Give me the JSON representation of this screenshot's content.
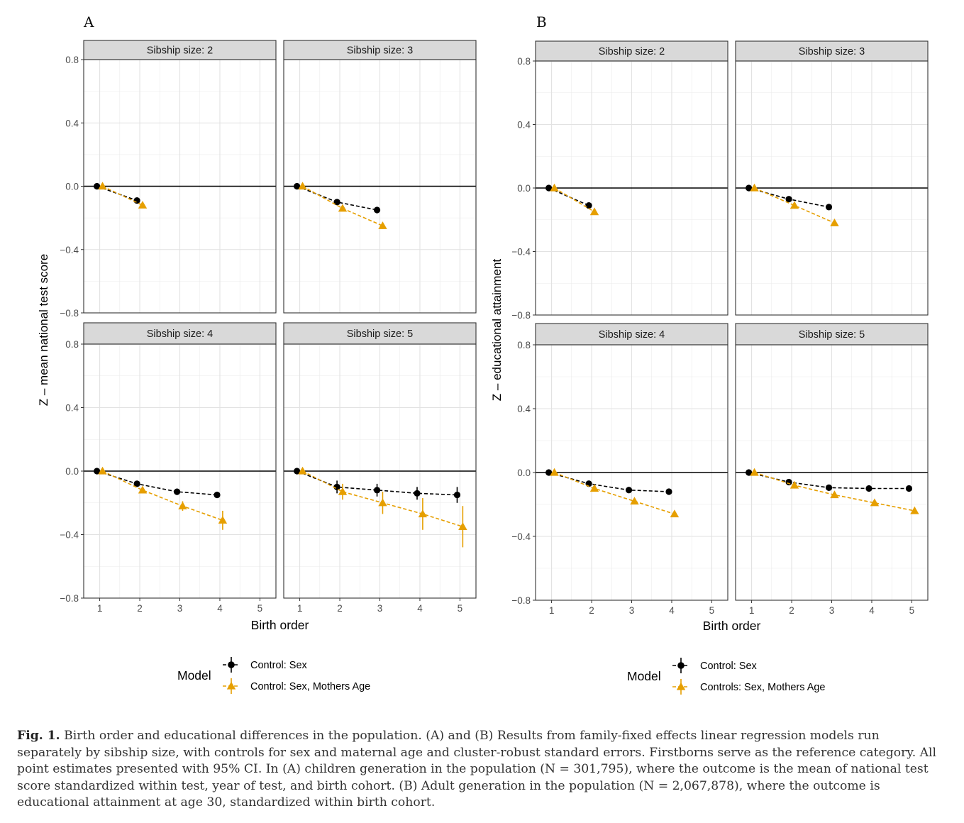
{
  "chart_data": [
    {
      "type": "line",
      "panel_label": "A",
      "ylabel": "Z – mean national test score",
      "xlabel": "Birth order",
      "ylim": [
        -0.8,
        0.8
      ],
      "yticks": [
        "0.8",
        "0.4",
        "0.0",
        "−0.4",
        "−0.8"
      ],
      "yticks_values": [
        0.8,
        0.4,
        0.0,
        -0.4,
        -0.8
      ],
      "xticks": [
        "1",
        "2",
        "3",
        "4",
        "5"
      ],
      "xlim": [
        0.6,
        5.4
      ],
      "grid": true,
      "legend": {
        "title": "Model",
        "position": "bottom",
        "entries": [
          "Control: Sex",
          "Control: Sex, Mothers Age"
        ]
      },
      "facets": [
        {
          "title": "Sibship size: 2",
          "series": [
            {
              "x": [
                1,
                2
              ],
              "y": [
                0.0,
                -0.09
              ],
              "ci_low": [
                0.0,
                -0.1
              ],
              "ci_high": [
                0.0,
                -0.08
              ]
            },
            {
              "x": [
                1,
                2
              ],
              "y": [
                0.0,
                -0.12
              ],
              "ci_low": [
                0.0,
                -0.13
              ],
              "ci_high": [
                0.0,
                -0.11
              ]
            }
          ]
        },
        {
          "title": "Sibship size: 3",
          "series": [
            {
              "x": [
                1,
                2,
                3
              ],
              "y": [
                0.0,
                -0.1,
                -0.15
              ],
              "ci_low": [
                0.0,
                -0.11,
                -0.17
              ],
              "ci_high": [
                0.0,
                -0.09,
                -0.13
              ]
            },
            {
              "x": [
                1,
                2,
                3
              ],
              "y": [
                0.0,
                -0.14,
                -0.25
              ],
              "ci_low": [
                0.0,
                -0.15,
                -0.27
              ],
              "ci_high": [
                0.0,
                -0.13,
                -0.23
              ]
            }
          ]
        },
        {
          "title": "Sibship size: 4",
          "series": [
            {
              "x": [
                1,
                2,
                3,
                4
              ],
              "y": [
                0.0,
                -0.08,
                -0.13,
                -0.15
              ],
              "ci_low": [
                0.0,
                -0.09,
                -0.15,
                -0.17
              ],
              "ci_high": [
                0.0,
                -0.07,
                -0.11,
                -0.13
              ]
            },
            {
              "x": [
                1,
                2,
                3,
                4
              ],
              "y": [
                0.0,
                -0.12,
                -0.22,
                -0.31
              ],
              "ci_low": [
                0.0,
                -0.14,
                -0.25,
                -0.37
              ],
              "ci_high": [
                0.0,
                -0.1,
                -0.19,
                -0.25
              ]
            }
          ]
        },
        {
          "title": "Sibship size: 5",
          "series": [
            {
              "x": [
                1,
                2,
                3,
                4,
                5
              ],
              "y": [
                0.0,
                -0.1,
                -0.12,
                -0.14,
                -0.15
              ],
              "ci_low": [
                0.0,
                -0.14,
                -0.16,
                -0.18,
                -0.2
              ],
              "ci_high": [
                0.0,
                -0.06,
                -0.08,
                -0.1,
                -0.1
              ]
            },
            {
              "x": [
                1,
                2,
                3,
                4,
                5
              ],
              "y": [
                0.0,
                -0.13,
                -0.2,
                -0.27,
                -0.35
              ],
              "ci_low": [
                0.0,
                -0.18,
                -0.27,
                -0.37,
                -0.48
              ],
              "ci_high": [
                0.0,
                -0.08,
                -0.13,
                -0.17,
                -0.22
              ]
            }
          ]
        }
      ]
    },
    {
      "type": "line",
      "panel_label": "B",
      "ylabel": "Z – educational attainment",
      "xlabel": "Birth order",
      "ylim": [
        -0.8,
        0.8
      ],
      "yticks": [
        "0.8",
        "0.4",
        "0.0",
        "−0.4",
        "−0.8"
      ],
      "yticks_values": [
        0.8,
        0.4,
        0.0,
        -0.4,
        -0.8
      ],
      "xticks": [
        "1",
        "2",
        "3",
        "4",
        "5"
      ],
      "xlim": [
        0.6,
        5.4
      ],
      "grid": true,
      "legend": {
        "title": "Model",
        "position": "bottom",
        "entries": [
          "Control: Sex",
          "Controls: Sex, Mothers Age"
        ]
      },
      "facets": [
        {
          "title": "Sibship size: 2",
          "series": [
            {
              "x": [
                1,
                2
              ],
              "y": [
                0.0,
                -0.11
              ],
              "ci_low": [
                0.0,
                -0.115
              ],
              "ci_high": [
                0.0,
                -0.105
              ]
            },
            {
              "x": [
                1,
                2
              ],
              "y": [
                0.0,
                -0.15
              ],
              "ci_low": [
                0.0,
                -0.155
              ],
              "ci_high": [
                0.0,
                -0.145
              ]
            }
          ]
        },
        {
          "title": "Sibship size: 3",
          "series": [
            {
              "x": [
                1,
                2,
                3
              ],
              "y": [
                0.0,
                -0.07,
                -0.12
              ],
              "ci_low": [
                0.0,
                -0.075,
                -0.125
              ],
              "ci_high": [
                0.0,
                -0.065,
                -0.115
              ]
            },
            {
              "x": [
                1,
                2,
                3
              ],
              "y": [
                0.0,
                -0.11,
                -0.22
              ],
              "ci_low": [
                0.0,
                -0.115,
                -0.225
              ],
              "ci_high": [
                0.0,
                -0.105,
                -0.215
              ]
            }
          ]
        },
        {
          "title": "Sibship size: 4",
          "series": [
            {
              "x": [
                1,
                2,
                3,
                4
              ],
              "y": [
                0.0,
                -0.07,
                -0.11,
                -0.12
              ],
              "ci_low": [
                0.0,
                -0.075,
                -0.115,
                -0.125
              ],
              "ci_high": [
                0.0,
                -0.065,
                -0.105,
                -0.115
              ]
            },
            {
              "x": [
                1,
                2,
                3,
                4
              ],
              "y": [
                0.0,
                -0.1,
                -0.18,
                -0.26
              ],
              "ci_low": [
                0.0,
                -0.105,
                -0.185,
                -0.265
              ],
              "ci_high": [
                0.0,
                -0.095,
                -0.175,
                -0.255
              ]
            }
          ]
        },
        {
          "title": "Sibship size: 5",
          "series": [
            {
              "x": [
                1,
                2,
                3,
                4,
                5
              ],
              "y": [
                0.0,
                -0.06,
                -0.095,
                -0.1,
                -0.1
              ],
              "ci_low": [
                0.0,
                -0.065,
                -0.1,
                -0.105,
                -0.105
              ],
              "ci_high": [
                0.0,
                -0.055,
                -0.09,
                -0.095,
                -0.095
              ]
            },
            {
              "x": [
                1,
                2,
                3,
                4,
                5
              ],
              "y": [
                0.0,
                -0.08,
                -0.14,
                -0.19,
                -0.24
              ],
              "ci_low": [
                0.0,
                -0.085,
                -0.145,
                -0.195,
                -0.255
              ],
              "ci_high": [
                0.0,
                -0.075,
                -0.135,
                -0.185,
                -0.225
              ]
            }
          ]
        }
      ]
    }
  ],
  "colors": {
    "control_sex": "#000000",
    "control_sex_mothers_age": "#E69F00",
    "strip_fill": "#D9D9D9",
    "grid": "#EBEBEB"
  },
  "caption": {
    "label": "Fig. 1.",
    "text": "Birth order and educational differences in the population. (A) and (B) Results from family-fixed effects linear regression models run separately by sibship size, with controls for sex and maternal age and cluster-robust standard errors. Firstborns serve as the reference category. All point estimates presented with 95% CI. In (A) children generation in the population (N = 301,795), where the outcome is the mean of national test score standardized within test, year of test, and birth cohort. (B) Adult generation in the population (N = 2,067,878), where the outcome is educational attainment at age 30, standardized within birth cohort."
  }
}
